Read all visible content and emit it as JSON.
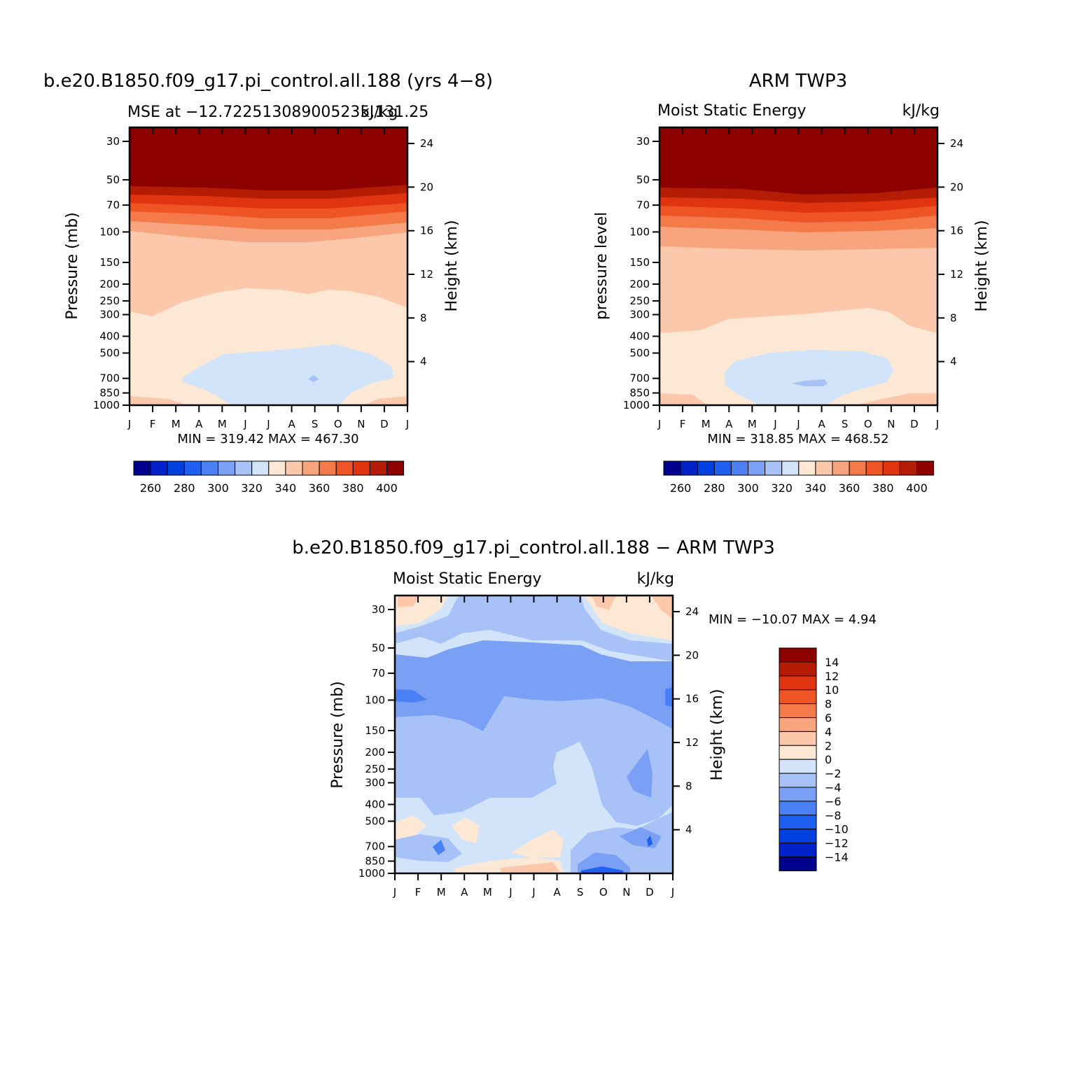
{
  "palette": [
    "#00008c",
    "#0022c8",
    "#0040e0",
    "#2060f0",
    "#4a80f4",
    "#7aa0f6",
    "#a8c2f8",
    "#d2e4fa",
    "#fde8d6",
    "#fcc8ac",
    "#f8a47e",
    "#f47a4a",
    "#ee5424",
    "#e03410",
    "#b41c04",
    "#8c0000"
  ],
  "chart_data": [
    {
      "type": "contour",
      "title": "b.e20.B1850.f09_g17.pi_control.all.188 (yrs 4−8)",
      "subtitle": "MSE at −12.722513089005235,131.25",
      "units_overlap": "kJ/kg",
      "ylabel": "Pressure (mb)",
      "y2label": "Height (km)",
      "months": [
        "J",
        "F",
        "M",
        "A",
        "M",
        "J",
        "J",
        "A",
        "S",
        "O",
        "N",
        "D",
        "J"
      ],
      "pressure_ticks": [
        "30",
        "50",
        "70",
        "100",
        "150",
        "200",
        "250",
        "300",
        "400",
        "500",
        "700",
        "850",
        "1000"
      ],
      "height_ticks": [
        "24",
        "20",
        "16",
        "12",
        "8",
        "4"
      ],
      "minmax": "MIN = 319.42  MAX = 467.30",
      "min": 319.42,
      "max": 467.3
    },
    {
      "type": "contour",
      "title": "ARM TWP3",
      "subtitle": "Moist Static Energy",
      "units": "kJ/kg",
      "ylabel": "pressure level",
      "y2label": "Height (km)",
      "months": [
        "J",
        "F",
        "M",
        "A",
        "M",
        "J",
        "J",
        "A",
        "S",
        "O",
        "N",
        "D",
        "J"
      ],
      "pressure_ticks": [
        "30",
        "50",
        "70",
        "100",
        "150",
        "200",
        "250",
        "300",
        "400",
        "500",
        "700",
        "850",
        "1000"
      ],
      "height_ticks": [
        "24",
        "20",
        "16",
        "12",
        "8",
        "4"
      ],
      "minmax": "MIN = 318.85  MAX = 468.52",
      "min": 318.85,
      "max": 468.52
    },
    {
      "type": "contour",
      "title": "b.e20.B1850.f09_g17.pi_control.all.188 − ARM TWP3",
      "subtitle": "Moist Static Energy",
      "units": "kJ/kg",
      "ylabel": "Pressure (mb)",
      "y2label": "Height (km)",
      "months": [
        "J",
        "F",
        "M",
        "A",
        "M",
        "J",
        "J",
        "A",
        "S",
        "O",
        "N",
        "D",
        "J"
      ],
      "pressure_ticks": [
        "30",
        "50",
        "70",
        "100",
        "150",
        "200",
        "250",
        "300",
        "400",
        "500",
        "700",
        "850",
        "1000"
      ],
      "height_ticks": [
        "24",
        "20",
        "16",
        "12",
        "8",
        "4"
      ],
      "minmax": "MIN = −10.07  MAX =    4.94",
      "min": -10.07,
      "max": 4.94
    }
  ],
  "colorbar_top": {
    "labels": [
      "260",
      "280",
      "300",
      "320",
      "340",
      "360",
      "380",
      "400"
    ]
  },
  "colorbar_diff": {
    "labels": [
      "14",
      "12",
      "10",
      "8",
      "6",
      "4",
      "2",
      "0",
      "−2",
      "−4",
      "−6",
      "−8",
      "−10",
      "−12",
      "−14"
    ]
  }
}
